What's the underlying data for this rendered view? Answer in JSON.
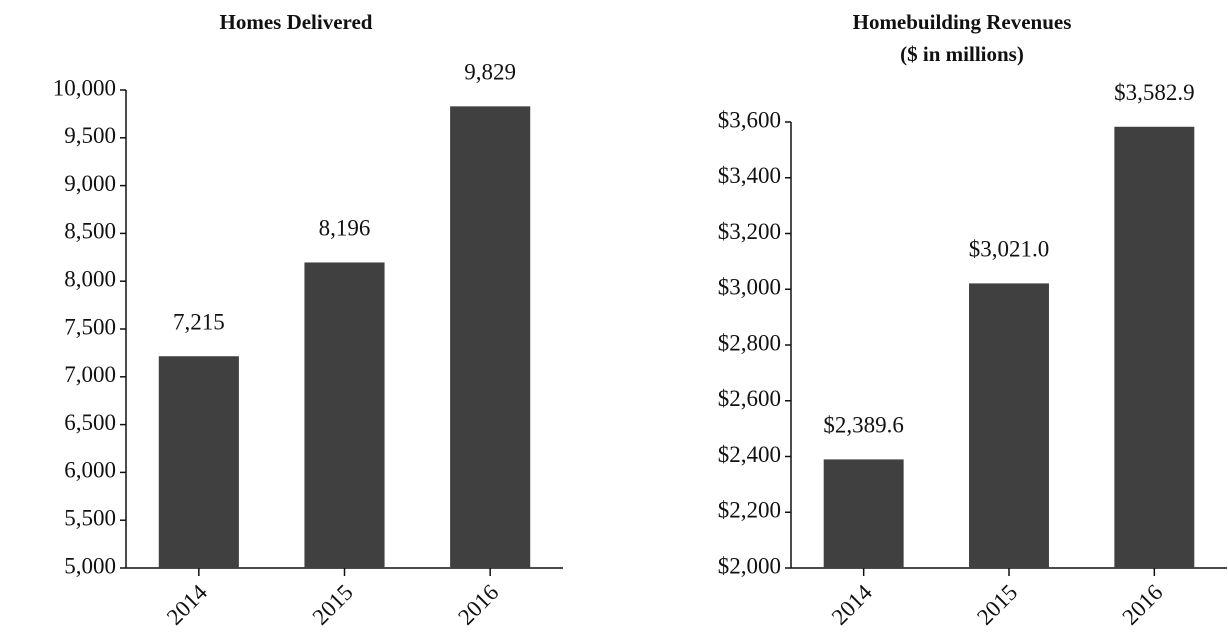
{
  "chart_data": [
    {
      "type": "bar",
      "title": "Homes Delivered",
      "categories": [
        "2014",
        "2015",
        "2016"
      ],
      "values": [
        7215,
        8196,
        9829
      ],
      "value_labels": [
        "7,215",
        "8,196",
        "9,829"
      ],
      "color": "#404040",
      "ylim": [
        5000,
        10000
      ],
      "yticks": [
        {
          "value": 5000,
          "label": "5,000"
        },
        {
          "value": 5500,
          "label": "5,500"
        },
        {
          "value": 6000,
          "label": "6,000"
        },
        {
          "value": 6500,
          "label": "6,500"
        },
        {
          "value": 7000,
          "label": "7,000"
        },
        {
          "value": 7500,
          "label": "7,500"
        },
        {
          "value": 8000,
          "label": "8,000"
        },
        {
          "value": 8500,
          "label": "8,500"
        },
        {
          "value": 9000,
          "label": "9,000"
        },
        {
          "value": 9500,
          "label": "9,500"
        },
        {
          "value": 10000,
          "label": "10,000"
        }
      ],
      "grid": false
    },
    {
      "type": "bar",
      "title": "Homebuilding Revenues",
      "subtitle": "($ in millions)",
      "categories": [
        "2014",
        "2015",
        "2016"
      ],
      "values": [
        2389.6,
        3021.0,
        3582.9
      ],
      "value_labels": [
        "$2,389.6",
        "$3,021.0",
        "$3,582.9"
      ],
      "color": "#404040",
      "ylim": [
        2000,
        3600
      ],
      "yticks": [
        {
          "value": 2000,
          "label": "$2,000"
        },
        {
          "value": 2200,
          "label": "$2,200"
        },
        {
          "value": 2400,
          "label": "$2,400"
        },
        {
          "value": 2600,
          "label": "$2,600"
        },
        {
          "value": 2800,
          "label": "$2,800"
        },
        {
          "value": 3000,
          "label": "$3,000"
        },
        {
          "value": 3200,
          "label": "$3,200"
        },
        {
          "value": 3400,
          "label": "$3,400"
        },
        {
          "value": 3600,
          "label": "$3,600"
        }
      ],
      "grid": false
    }
  ]
}
